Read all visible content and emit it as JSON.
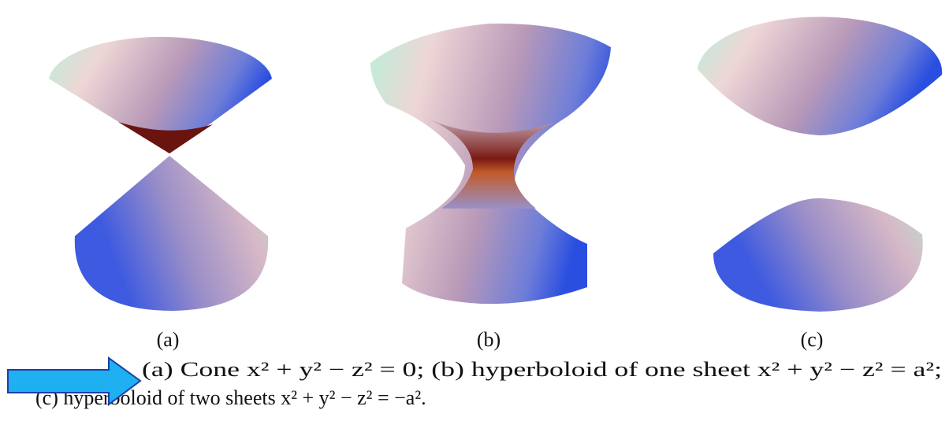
{
  "figure": {
    "panels": [
      {
        "label": "(a)"
      },
      {
        "label": "(b)"
      },
      {
        "label": "(c)"
      }
    ],
    "caption": [
      "(a) Cone x² + y² − z² = 0; (b) hyperboloid of one sheet x² + y² − z² = a²;",
      "(c) hyperboloid of two sheets x² + y² − z² = −a²."
    ]
  }
}
